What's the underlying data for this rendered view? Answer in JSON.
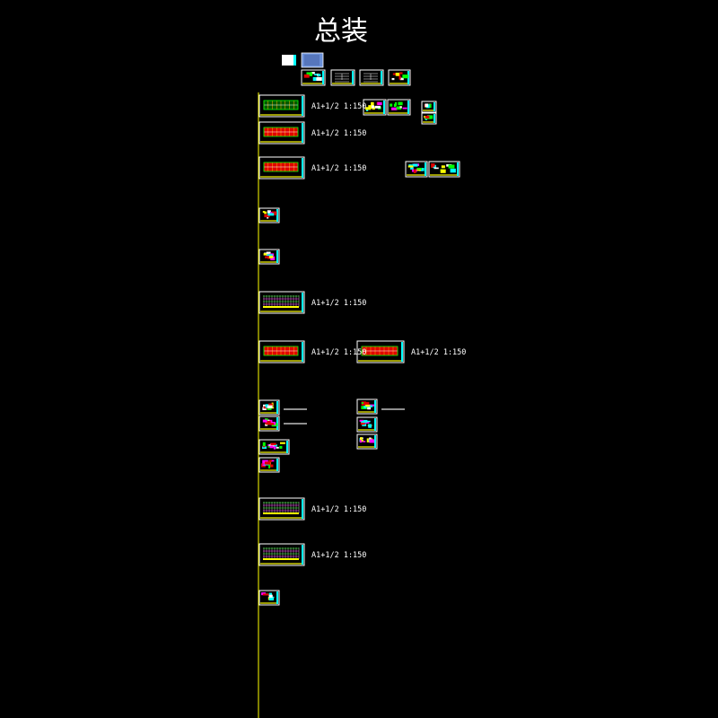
{
  "title": "总装",
  "scale_label": "A1+1/2 1:150",
  "colors": {
    "background": "#000000",
    "guide_line": "#ffff00",
    "label_text": "#ffffff",
    "sheet_frame": "#ffffff",
    "sheet_border": "#00ffff",
    "red_fill": "#e00000",
    "green": "#00ff00",
    "yellow": "#ffff00",
    "magenta": "#ff00ff",
    "blue_sheet": "#6a8fd8"
  },
  "sheets": [
    {
      "id": "cover",
      "kind": "blank"
    },
    {
      "id": "index",
      "kind": "blue"
    },
    {
      "id": "notes-1",
      "kind": "colorful"
    },
    {
      "id": "notes-2",
      "kind": "schedule"
    },
    {
      "id": "notes-3",
      "kind": "schedule"
    },
    {
      "id": "notes-4",
      "kind": "detail"
    },
    {
      "id": "plan-ground",
      "kind": "plan-green",
      "labeled": true
    },
    {
      "id": "plan-typical",
      "kind": "plan-red",
      "labeled": true
    },
    {
      "id": "plan-roof",
      "kind": "plan-red",
      "labeled": true
    },
    {
      "id": "detail-a",
      "kind": "detail"
    },
    {
      "id": "detail-b",
      "kind": "detail"
    },
    {
      "id": "detail-c",
      "kind": "detail"
    },
    {
      "id": "detail-d",
      "kind": "detail"
    },
    {
      "id": "detail-e",
      "kind": "detail"
    },
    {
      "id": "detail-f",
      "kind": "detail"
    },
    {
      "id": "stair-1",
      "kind": "small"
    },
    {
      "id": "stair-2",
      "kind": "small"
    },
    {
      "id": "elevation-1",
      "kind": "elevation",
      "labeled": true
    },
    {
      "id": "plan-red-2",
      "kind": "plan-red",
      "labeled": true
    },
    {
      "id": "plan-red-3",
      "kind": "plan-red",
      "labeled": true
    },
    {
      "id": "wall-1",
      "kind": "small"
    },
    {
      "id": "wall-2",
      "kind": "small"
    },
    {
      "id": "wall-3",
      "kind": "strip"
    },
    {
      "id": "wall-4",
      "kind": "small"
    },
    {
      "id": "wall-5",
      "kind": "small"
    },
    {
      "id": "wall-6",
      "kind": "small"
    },
    {
      "id": "wall-7",
      "kind": "small"
    },
    {
      "id": "wall-8",
      "kind": "small"
    },
    {
      "id": "elevation-2",
      "kind": "elevation",
      "labeled": true
    },
    {
      "id": "elevation-3",
      "kind": "elevation",
      "labeled": true
    },
    {
      "id": "legend",
      "kind": "small"
    }
  ]
}
